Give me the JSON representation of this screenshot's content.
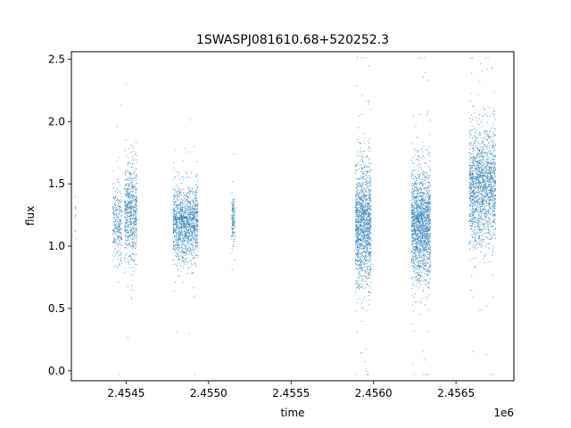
{
  "chart_data": {
    "type": "scatter",
    "title": "1SWASPJ081610.68+520252.3",
    "xlabel": "time",
    "ylabel": "flux",
    "x_offset_label": "1e6",
    "xlim": [
      2454168,
      2456851
    ],
    "ylim": [
      -0.08,
      2.56
    ],
    "x_ticks": [
      2454500,
      2455000,
      2455500,
      2456000,
      2456500
    ],
    "x_tick_labels": [
      "2.4545",
      "2.4550",
      "2.4555",
      "2.4560",
      "2.4565"
    ],
    "y_ticks": [
      0.0,
      0.5,
      1.0,
      1.5,
      2.0,
      2.5
    ],
    "y_tick_labels": [
      "0.0",
      "0.5",
      "1.0",
      "1.5",
      "2.0",
      "2.5"
    ],
    "grid": false,
    "marker_color": "#1f77b4",
    "series": [
      {
        "points_by_season": [
          {
            "x_start": 2454190,
            "x_end": 2454195,
            "flux_center": 1.25,
            "flux_spread": 0.12,
            "count": 10
          },
          {
            "x_start": 2454420,
            "x_end": 2454475,
            "flux_center": 1.18,
            "flux_spread": 0.14,
            "count": 300
          },
          {
            "x_start": 2454490,
            "x_end": 2454565,
            "flux_center": 1.25,
            "flux_spread": 0.2,
            "count": 700
          },
          {
            "x_start": 2454785,
            "x_end": 2454935,
            "flux_center": 1.18,
            "flux_spread": 0.15,
            "count": 1400
          },
          {
            "x_start": 2455140,
            "x_end": 2455160,
            "flux_center": 1.2,
            "flux_spread": 0.1,
            "count": 140
          },
          {
            "x_start": 2455890,
            "x_end": 2455985,
            "flux_center": 1.18,
            "flux_spread": 0.24,
            "count": 1500
          },
          {
            "x_start": 2456230,
            "x_end": 2456345,
            "flux_center": 1.17,
            "flux_spread": 0.22,
            "count": 1800
          },
          {
            "x_start": 2456580,
            "x_end": 2456740,
            "flux_center": 1.48,
            "flux_spread": 0.23,
            "count": 1800
          }
        ]
      }
    ]
  }
}
